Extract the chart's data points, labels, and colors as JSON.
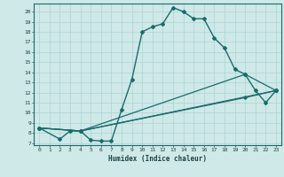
{
  "xlabel": "Humidex (Indice chaleur)",
  "xlim": [
    -0.5,
    23.5
  ],
  "ylim": [
    6.8,
    20.8
  ],
  "xticks": [
    0,
    1,
    2,
    3,
    4,
    5,
    6,
    7,
    8,
    9,
    10,
    11,
    12,
    13,
    14,
    15,
    16,
    17,
    18,
    19,
    20,
    21,
    22,
    23
  ],
  "yticks": [
    7,
    8,
    9,
    10,
    11,
    12,
    13,
    14,
    15,
    16,
    17,
    18,
    19,
    20
  ],
  "bg_color": "#cfe8e8",
  "line_color": "#1a6b6b",
  "grid_color": "#aad4d4",
  "lines": [
    {
      "x": [
        0,
        2,
        3,
        4,
        5,
        6,
        7,
        8,
        9,
        10,
        11,
        12,
        13,
        14,
        15,
        16,
        17,
        18,
        19,
        20,
        21,
        22,
        23
      ],
      "y": [
        8.5,
        7.4,
        8.2,
        8.2,
        7.3,
        7.2,
        7.2,
        10.3,
        13.3,
        18.0,
        18.5,
        18.8,
        20.4,
        20.0,
        19.3,
        19.3,
        17.4,
        16.4,
        14.3,
        13.8,
        12.2,
        11.0,
        12.2
      ]
    },
    {
      "x": [
        0,
        4,
        23
      ],
      "y": [
        8.5,
        8.2,
        12.2
      ]
    },
    {
      "x": [
        0,
        4,
        20,
        23
      ],
      "y": [
        8.5,
        8.2,
        13.8,
        12.2
      ]
    },
    {
      "x": [
        0,
        4,
        20,
        23
      ],
      "y": [
        8.5,
        8.2,
        11.5,
        12.2
      ]
    }
  ]
}
